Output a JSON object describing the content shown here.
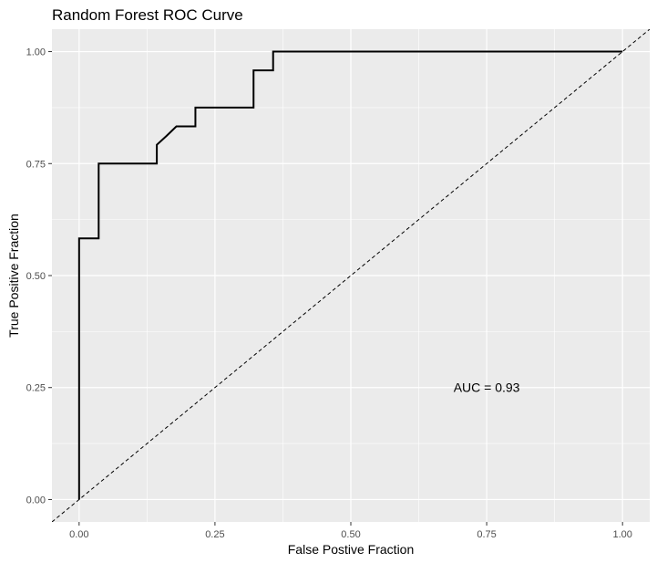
{
  "chart_data": {
    "type": "line",
    "title": "Random Forest ROC Curve",
    "xlabel": "False Postive Fraction",
    "ylabel": "True Positive Fraction",
    "xlim": [
      -0.05,
      1.05
    ],
    "ylim": [
      -0.05,
      1.05
    ],
    "x_ticks": [
      0.0,
      0.25,
      0.5,
      0.75,
      1.0
    ],
    "x_tick_labels": [
      "0.00",
      "0.25",
      "0.50",
      "0.75",
      "1.00"
    ],
    "y_ticks": [
      0.0,
      0.25,
      0.5,
      0.75,
      1.0
    ],
    "y_tick_labels": [
      "0.00",
      "0.25",
      "0.50",
      "0.75",
      "1.00"
    ],
    "grid": true,
    "series": [
      {
        "x": [
          0,
          0,
          0.036,
          0.036,
          0.143,
          0.143,
          0.161,
          0.179,
          0.214,
          0.214,
          0.321,
          0.321,
          0.357,
          0.357,
          1.0
        ],
        "y": [
          0,
          0.583,
          0.583,
          0.75,
          0.75,
          0.792,
          0.812,
          0.833,
          0.833,
          0.875,
          0.875,
          0.958,
          0.958,
          1.0,
          1.0
        ],
        "color": "#000000",
        "style": "solid"
      },
      {
        "x": [
          -0.05,
          1.05
        ],
        "y": [
          -0.05,
          1.05
        ],
        "color": "#000000",
        "style": "dashed"
      }
    ],
    "annotations": [
      {
        "text": "AUC = 0.93",
        "x": 0.75,
        "y": 0.25
      }
    ],
    "colors": {
      "panel": "#ebebeb",
      "grid": "#ffffff",
      "tick_text": "#4d4d4d"
    }
  }
}
